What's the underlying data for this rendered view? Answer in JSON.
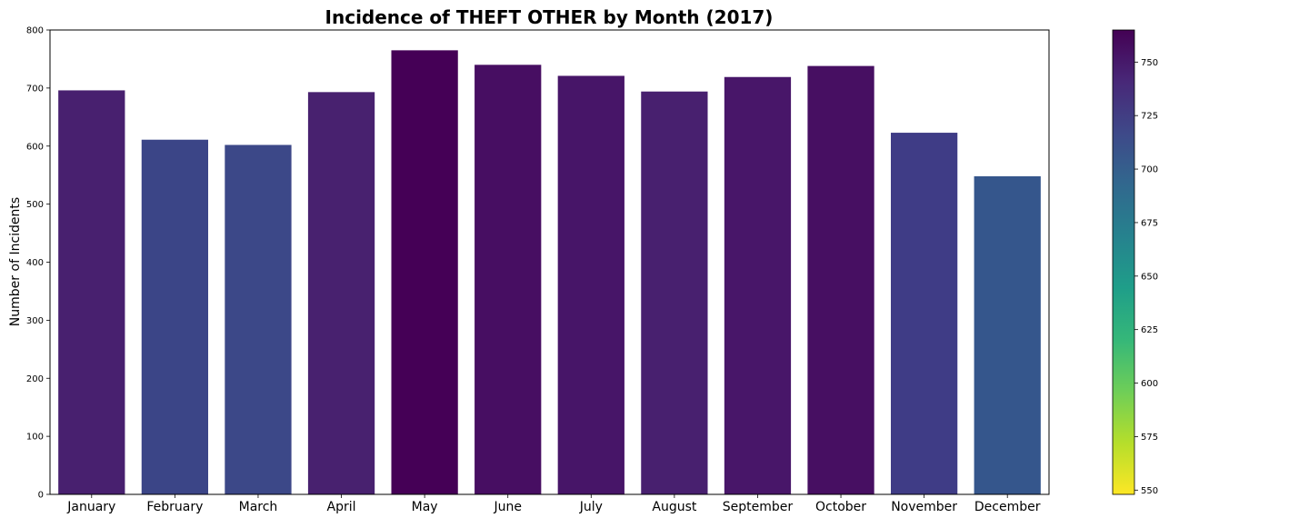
{
  "chart_data": {
    "type": "bar",
    "title": "Incidence of THEFT OTHER by Month (2017)",
    "xlabel": "",
    "ylabel": "Number of Incidents",
    "ylim": [
      0,
      800
    ],
    "yticks": [
      0,
      100,
      200,
      300,
      400,
      500,
      600,
      700,
      800
    ],
    "categories": [
      "January",
      "February",
      "March",
      "April",
      "May",
      "June",
      "July",
      "August",
      "September",
      "October",
      "November",
      "December"
    ],
    "values": [
      696,
      611,
      602,
      693,
      765,
      740,
      721,
      694,
      719,
      738,
      623,
      548
    ],
    "colors": [
      "#48206f",
      "#3b4587",
      "#3c4888",
      "#48216f",
      "#450056",
      "#470e62",
      "#471568",
      "#48206f",
      "#481669",
      "#470f62",
      "#3f3c86",
      "#35568c"
    ],
    "grid": false,
    "colorbar": {
      "colormap": "viridis_r",
      "range": [
        548,
        765
      ],
      "ticks": [
        550,
        575,
        600,
        625,
        650,
        675,
        700,
        725,
        750
      ],
      "stops": [
        "#fde725",
        "#b5de2b",
        "#6ece58",
        "#35b779",
        "#1f9e89",
        "#26828e",
        "#31688e",
        "#3e4989",
        "#482878",
        "#440154"
      ]
    }
  }
}
